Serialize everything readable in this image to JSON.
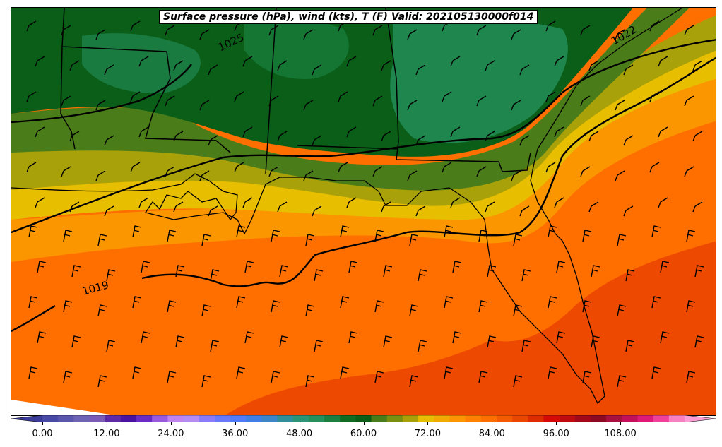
{
  "title": "Surface pressure (hPa), wind (kts), T (F) Valid: 202105130000f014",
  "isobar_labels": [
    {
      "text": "1025"
    },
    {
      "text": "1022"
    },
    {
      "text": "1019"
    }
  ],
  "colorbar": {
    "min": -6,
    "max": 120,
    "step": 3,
    "tick_labels": [
      "0.00",
      "12.00",
      "24.00",
      "36.00",
      "48.00",
      "60.00",
      "72.00",
      "84.00",
      "96.00",
      "108.00"
    ],
    "tick_values": [
      0,
      12,
      24,
      36,
      48,
      60,
      72,
      84,
      96,
      108
    ],
    "colors": [
      "#3b3b9a",
      "#4848a6",
      "#5a56ae",
      "#6e64b6",
      "#7a5bb8",
      "#5e2aa8",
      "#4a12a0",
      "#6a2cc4",
      "#9a5ae0",
      "#c084f0",
      "#b48cf4",
      "#8a7cf8",
      "#6a78fa",
      "#4f7af8",
      "#3e7fe6",
      "#3a86c8",
      "#2f8f9a",
      "#2b9677",
      "#24905c",
      "#1a8040",
      "#0e6b22",
      "#0a5e18",
      "#4a7d1a",
      "#7a8f12",
      "#a9a10a",
      "#e8be00",
      "#f2a900",
      "#fb9500",
      "#ff8200",
      "#ff6f00",
      "#f65a00",
      "#ec4500",
      "#e02a00",
      "#d80a08",
      "#c00a10",
      "#a3081a",
      "#8c0b22",
      "#a81040",
      "#c4105a",
      "#e01878",
      "#f0409a",
      "#f880c0",
      "#ff9ed6"
    ]
  }
}
